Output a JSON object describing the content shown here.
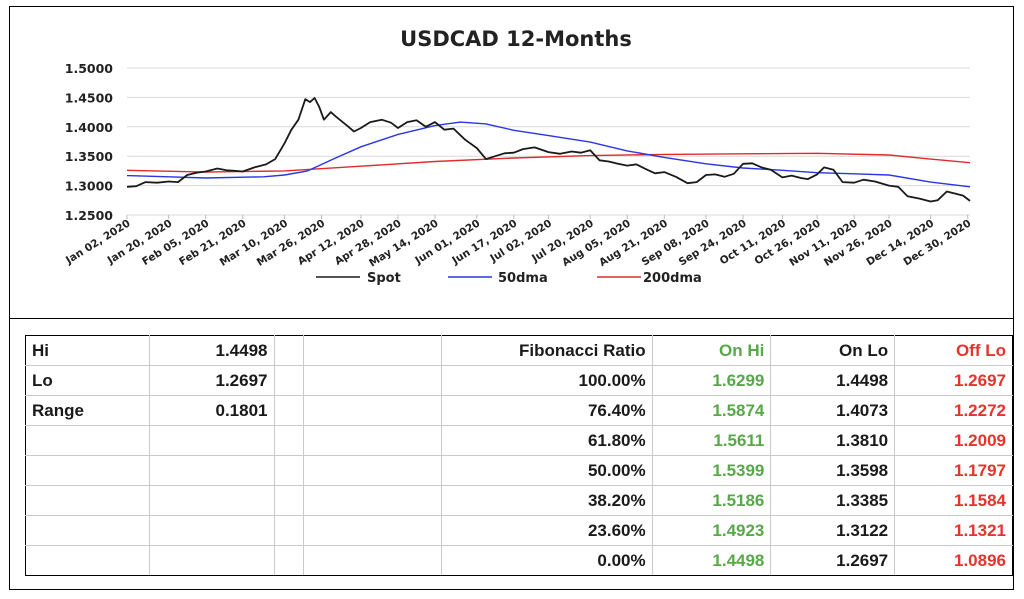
{
  "chart_data": {
    "type": "line",
    "title": "USDCAD 12-Months",
    "y_ticks": [
      "1.5000",
      "1.4500",
      "1.4000",
      "1.3500",
      "1.3000",
      "1.2500"
    ],
    "ylim": [
      1.25,
      1.5
    ],
    "x_range": [
      "2020-01-02",
      "2020-12-31"
    ],
    "x_tick_labels": [
      "Jan 02, 2020",
      "Jan 20, 2020",
      "Feb 05, 2020",
      "Feb 21, 2020",
      "Mar 10, 2020",
      "Mar 26, 2020",
      "Apr 12, 2020",
      "Apr 28, 2020",
      "May 14, 2020",
      "Jun 01, 2020",
      "Jun 17, 2020",
      "Jul 02, 2020",
      "Jul 20, 2020",
      "Aug 05, 2020",
      "Aug 21, 2020",
      "Sep 08, 2020",
      "Sep 24, 2020",
      "Oct 11, 2020",
      "Oct 26, 2020",
      "Nov 11, 2020",
      "Nov 26, 2020",
      "Dec 14, 2020",
      "Dec 30, 2020"
    ],
    "x_tick_dates": [
      "2020-01-02",
      "2020-01-20",
      "2020-02-05",
      "2020-02-21",
      "2020-03-10",
      "2020-03-26",
      "2020-04-12",
      "2020-04-28",
      "2020-05-14",
      "2020-06-01",
      "2020-06-17",
      "2020-07-02",
      "2020-07-20",
      "2020-08-05",
      "2020-08-21",
      "2020-09-08",
      "2020-09-24",
      "2020-10-11",
      "2020-10-26",
      "2020-11-11",
      "2020-11-26",
      "2020-12-14",
      "2020-12-30"
    ],
    "grid": "horizontal",
    "legend_position": "bottom",
    "series": [
      {
        "name": "Spot",
        "color": "#1a1a1a",
        "points": [
          [
            "2020-01-02",
            1.298
          ],
          [
            "2020-01-06",
            1.299
          ],
          [
            "2020-01-10",
            1.306
          ],
          [
            "2020-01-15",
            1.305
          ],
          [
            "2020-01-20",
            1.307
          ],
          [
            "2020-01-24",
            1.306
          ],
          [
            "2020-01-28",
            1.318
          ],
          [
            "2020-02-01",
            1.322
          ],
          [
            "2020-02-05",
            1.324
          ],
          [
            "2020-02-10",
            1.329
          ],
          [
            "2020-02-14",
            1.326
          ],
          [
            "2020-02-18",
            1.325
          ],
          [
            "2020-02-21",
            1.324
          ],
          [
            "2020-02-26",
            1.331
          ],
          [
            "2020-03-02",
            1.336
          ],
          [
            "2020-03-06",
            1.345
          ],
          [
            "2020-03-10",
            1.372
          ],
          [
            "2020-03-13",
            1.395
          ],
          [
            "2020-03-16",
            1.412
          ],
          [
            "2020-03-19",
            1.447
          ],
          [
            "2020-03-21",
            1.442
          ],
          [
            "2020-03-23",
            1.449
          ],
          [
            "2020-03-25",
            1.434
          ],
          [
            "2020-03-27",
            1.412
          ],
          [
            "2020-03-30",
            1.425
          ],
          [
            "2020-04-01",
            1.418
          ],
          [
            "2020-04-06",
            1.402
          ],
          [
            "2020-04-09",
            1.392
          ],
          [
            "2020-04-12",
            1.398
          ],
          [
            "2020-04-16",
            1.408
          ],
          [
            "2020-04-21",
            1.412
          ],
          [
            "2020-04-25",
            1.407
          ],
          [
            "2020-04-28",
            1.398
          ],
          [
            "2020-05-02",
            1.408
          ],
          [
            "2020-05-06",
            1.411
          ],
          [
            "2020-05-10",
            1.4
          ],
          [
            "2020-05-14",
            1.408
          ],
          [
            "2020-05-18",
            1.395
          ],
          [
            "2020-05-22",
            1.397
          ],
          [
            "2020-05-27",
            1.378
          ],
          [
            "2020-06-01",
            1.364
          ],
          [
            "2020-06-05",
            1.345
          ],
          [
            "2020-06-09",
            1.35
          ],
          [
            "2020-06-13",
            1.355
          ],
          [
            "2020-06-17",
            1.356
          ],
          [
            "2020-06-21",
            1.362
          ],
          [
            "2020-06-26",
            1.365
          ],
          [
            "2020-07-02",
            1.357
          ],
          [
            "2020-07-07",
            1.354
          ],
          [
            "2020-07-12",
            1.358
          ],
          [
            "2020-07-16",
            1.356
          ],
          [
            "2020-07-20",
            1.36
          ],
          [
            "2020-07-24",
            1.343
          ],
          [
            "2020-07-28",
            1.341
          ],
          [
            "2020-08-01",
            1.337
          ],
          [
            "2020-08-05",
            1.334
          ],
          [
            "2020-08-09",
            1.336
          ],
          [
            "2020-08-13",
            1.328
          ],
          [
            "2020-08-17",
            1.321
          ],
          [
            "2020-08-21",
            1.323
          ],
          [
            "2020-08-26",
            1.315
          ],
          [
            "2020-08-31",
            1.304
          ],
          [
            "2020-09-04",
            1.306
          ],
          [
            "2020-09-08",
            1.318
          ],
          [
            "2020-09-12",
            1.319
          ],
          [
            "2020-09-16",
            1.315
          ],
          [
            "2020-09-20",
            1.32
          ],
          [
            "2020-09-24",
            1.337
          ],
          [
            "2020-09-28",
            1.338
          ],
          [
            "2020-10-02",
            1.331
          ],
          [
            "2020-10-06",
            1.327
          ],
          [
            "2020-10-11",
            1.314
          ],
          [
            "2020-10-15",
            1.317
          ],
          [
            "2020-10-19",
            1.313
          ],
          [
            "2020-10-22",
            1.311
          ],
          [
            "2020-10-26",
            1.319
          ],
          [
            "2020-10-29",
            1.331
          ],
          [
            "2020-11-02",
            1.327
          ],
          [
            "2020-11-06",
            1.306
          ],
          [
            "2020-11-11",
            1.305
          ],
          [
            "2020-11-15",
            1.31
          ],
          [
            "2020-11-20",
            1.307
          ],
          [
            "2020-11-26",
            1.3
          ],
          [
            "2020-11-30",
            1.298
          ],
          [
            "2020-12-04",
            1.282
          ],
          [
            "2020-12-09",
            1.278
          ],
          [
            "2020-12-14",
            1.273
          ],
          [
            "2020-12-17",
            1.275
          ],
          [
            "2020-12-21",
            1.29
          ],
          [
            "2020-12-24",
            1.287
          ],
          [
            "2020-12-28",
            1.283
          ],
          [
            "2020-12-31",
            1.274
          ]
        ]
      },
      {
        "name": "50dma",
        "color": "#2a35e6",
        "points": [
          [
            "2020-01-02",
            1.317
          ],
          [
            "2020-01-20",
            1.315
          ],
          [
            "2020-02-05",
            1.313
          ],
          [
            "2020-03-01",
            1.315
          ],
          [
            "2020-03-10",
            1.318
          ],
          [
            "2020-03-20",
            1.325
          ],
          [
            "2020-03-31",
            1.345
          ],
          [
            "2020-04-12",
            1.366
          ],
          [
            "2020-04-28",
            1.387
          ],
          [
            "2020-05-14",
            1.402
          ],
          [
            "2020-05-25",
            1.408
          ],
          [
            "2020-06-05",
            1.405
          ],
          [
            "2020-06-17",
            1.394
          ],
          [
            "2020-07-02",
            1.385
          ],
          [
            "2020-07-20",
            1.374
          ],
          [
            "2020-08-05",
            1.359
          ],
          [
            "2020-08-21",
            1.348
          ],
          [
            "2020-09-08",
            1.337
          ],
          [
            "2020-09-24",
            1.33
          ],
          [
            "2020-10-11",
            1.326
          ],
          [
            "2020-10-26",
            1.322
          ],
          [
            "2020-11-11",
            1.32
          ],
          [
            "2020-11-26",
            1.318
          ],
          [
            "2020-12-14",
            1.306
          ],
          [
            "2020-12-31",
            1.298
          ]
        ]
      },
      {
        "name": "200dma",
        "color": "#e02b2b",
        "points": [
          [
            "2020-01-02",
            1.326
          ],
          [
            "2020-02-05",
            1.323
          ],
          [
            "2020-03-10",
            1.325
          ],
          [
            "2020-04-12",
            1.333
          ],
          [
            "2020-05-14",
            1.341
          ],
          [
            "2020-06-17",
            1.347
          ],
          [
            "2020-07-20",
            1.351
          ],
          [
            "2020-08-21",
            1.353
          ],
          [
            "2020-09-24",
            1.354
          ],
          [
            "2020-10-26",
            1.355
          ],
          [
            "2020-11-26",
            1.352
          ],
          [
            "2020-12-14",
            1.345
          ],
          [
            "2020-12-31",
            1.339
          ]
        ]
      }
    ]
  },
  "table": {
    "rows": [
      {
        "a": "Hi",
        "b": "1.4498",
        "c": "",
        "d": "",
        "ratio": "Fibonacci  Ratio",
        "on_hi": "On Hi",
        "on_lo": "On Lo",
        "off_lo": "Off Lo"
      },
      {
        "a": "Lo",
        "b": "1.2697",
        "c": "",
        "d": "",
        "ratio": "100.00%",
        "on_hi": "1.6299",
        "on_lo": "1.4498",
        "off_lo": "1.2697"
      },
      {
        "a": "Range",
        "b": "0.1801",
        "c": "",
        "d": "",
        "ratio": "76.40%",
        "on_hi": "1.5874",
        "on_lo": "1.4073",
        "off_lo": "1.2272"
      },
      {
        "a": "",
        "b": "",
        "c": "",
        "d": "",
        "ratio": "61.80%",
        "on_hi": "1.5611",
        "on_lo": "1.3810",
        "off_lo": "1.2009"
      },
      {
        "a": "",
        "b": "",
        "c": "",
        "d": "",
        "ratio": "50.00%",
        "on_hi": "1.5399",
        "on_lo": "1.3598",
        "off_lo": "1.1797"
      },
      {
        "a": "",
        "b": "",
        "c": "",
        "d": "",
        "ratio": "38.20%",
        "on_hi": "1.5186",
        "on_lo": "1.3385",
        "off_lo": "1.1584"
      },
      {
        "a": "",
        "b": "",
        "c": "",
        "d": "",
        "ratio": "23.60%",
        "on_hi": "1.4923",
        "on_lo": "1.3122",
        "off_lo": "1.1321"
      },
      {
        "a": "",
        "b": "",
        "c": "",
        "d": "",
        "ratio": "0.00%",
        "on_hi": "1.4498",
        "on_lo": "1.2697",
        "off_lo": "1.0896"
      }
    ],
    "colors": {
      "on_hi": "#58a84a",
      "off_lo": "#e5342c"
    }
  }
}
